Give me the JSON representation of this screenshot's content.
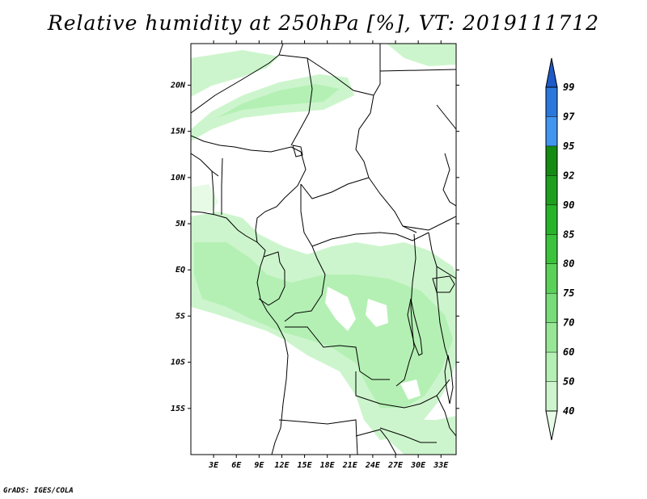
{
  "title": "Relative humidity at 250hPa [%], VT: 2019111712",
  "credit": "GrADS: IGES/COLA",
  "map": {
    "lat_labels": [
      "20N",
      "15N",
      "10N",
      "5N",
      "EQ",
      "5S",
      "10S",
      "15S"
    ],
    "lon_labels": [
      "3E",
      "6E",
      "9E",
      "12E",
      "15E",
      "18E",
      "21E",
      "24E",
      "27E",
      "30E",
      "33E"
    ],
    "lat_range": [
      -20,
      24.5
    ],
    "lon_range": [
      0,
      35
    ]
  },
  "colorbar": {
    "labels": [
      "40",
      "50",
      "60",
      "70",
      "75",
      "80",
      "85",
      "90",
      "92",
      "95",
      "97",
      "99"
    ],
    "colors": [
      "#e6fae6",
      "#cdf5cd",
      "#b4f0b4",
      "#96e696",
      "#78dc78",
      "#5ad25a",
      "#3cc33c",
      "#28b428",
      "#1ea01e",
      "#148c14",
      "#4196f0",
      "#2a78dc",
      "#1e5ac8"
    ]
  }
}
